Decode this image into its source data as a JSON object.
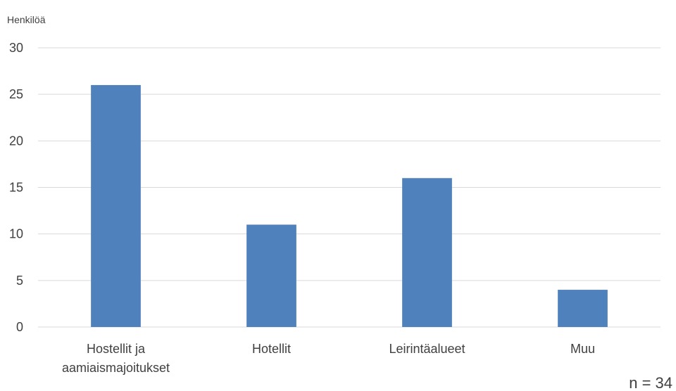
{
  "chart_data": {
    "type": "bar",
    "ylabel": "Henkilöä",
    "categories": [
      [
        "Hostellit ja",
        "aamiaismajoitukset"
      ],
      [
        "Hotellit"
      ],
      [
        "Leirintäalueet"
      ],
      [
        "Muu"
      ]
    ],
    "values": [
      26,
      11,
      16,
      4
    ],
    "ylim": [
      0,
      30
    ],
    "yticks": [
      0,
      5,
      10,
      15,
      20,
      25,
      30
    ],
    "grid": true,
    "bar_color": "#4f81bd",
    "note": "n = 34"
  }
}
